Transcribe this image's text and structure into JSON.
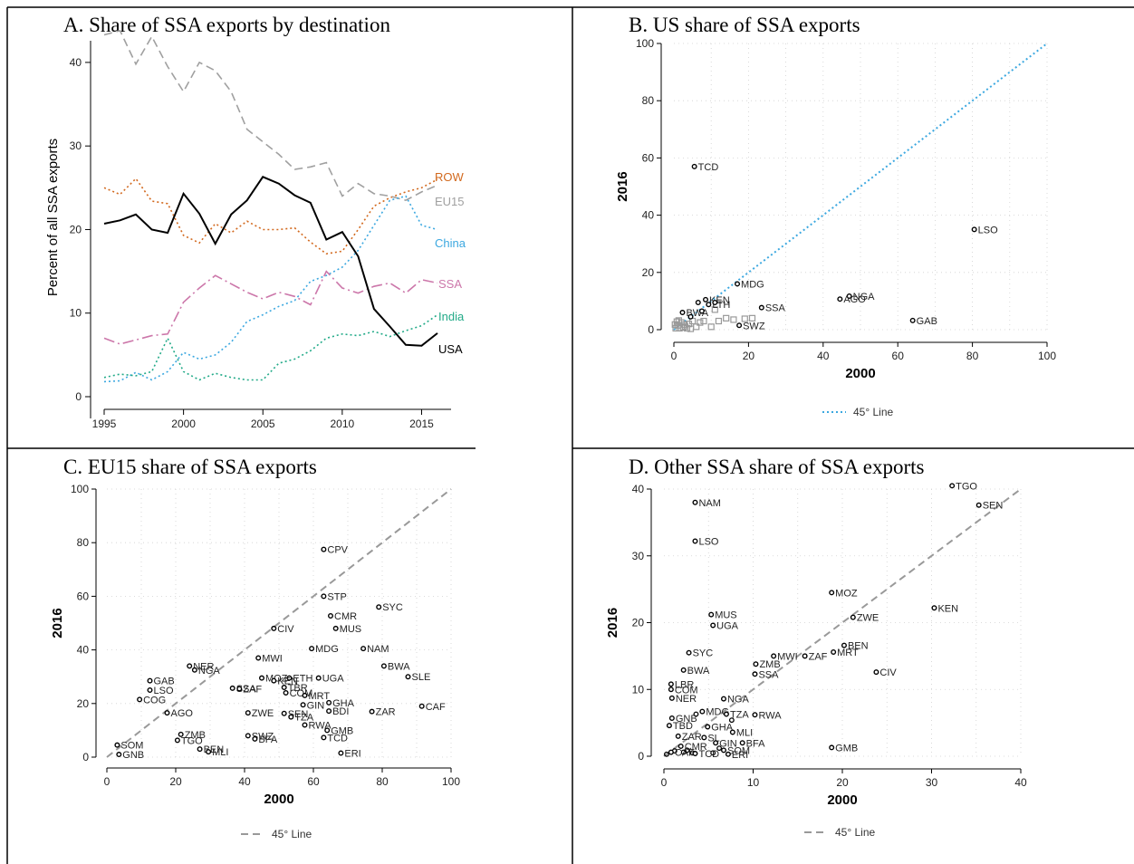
{
  "chart_data": [
    {
      "type": "line",
      "title": "A.   Share of SSA exports by destination",
      "ylabel": "Percent of all SSA  exports",
      "xlabel": "",
      "xlim": [
        1995,
        2016
      ],
      "ylim": [
        0,
        44
      ],
      "xticks": [
        1995,
        2000,
        2005,
        2010,
        2015
      ],
      "yticks": [
        0,
        10,
        20,
        30,
        40
      ],
      "grid": false,
      "x": [
        1995,
        1996,
        1997,
        1998,
        1999,
        2000,
        2001,
        2002,
        2003,
        2004,
        2005,
        2006,
        2007,
        2008,
        2009,
        2010,
        2011,
        2012,
        2013,
        2014,
        2015,
        2016
      ],
      "series": [
        {
          "name": "ROW",
          "color": "#d2691e",
          "dash": "dot",
          "values": [
            25,
            24.2,
            26.1,
            23.4,
            23.1,
            19.3,
            18.4,
            20.7,
            19.6,
            21,
            20,
            20,
            20.2,
            18.5,
            17.1,
            17.4,
            20,
            22.8,
            23.8,
            24.5,
            25,
            26
          ]
        },
        {
          "name": "EU15",
          "color": "#a0a0a0",
          "dash": "dash",
          "values": [
            43.3,
            43.8,
            39.8,
            43.1,
            39.5,
            36.5,
            40,
            39,
            36.5,
            32,
            30.5,
            29,
            27.2,
            27.5,
            28,
            24,
            25.5,
            24.3,
            24,
            23.5,
            24.5,
            25.3
          ]
        },
        {
          "name": "China",
          "color": "#3ca8e0",
          "dash": "dot",
          "values": [
            1.8,
            1.9,
            2.9,
            2,
            3,
            5.3,
            4.5,
            5,
            6.5,
            9,
            9.8,
            10.8,
            11.5,
            13.8,
            14.5,
            15.5,
            17.5,
            20.5,
            23.5,
            24,
            20.5,
            20
          ]
        },
        {
          "name": "SSA",
          "color": "#cc77aa",
          "dash": "dashdot",
          "values": [
            7,
            6.3,
            6.8,
            7.3,
            7.5,
            11.3,
            13,
            14.5,
            13.5,
            12.5,
            11.7,
            12.5,
            12,
            11,
            15,
            13,
            12.4,
            13.2,
            13.6,
            12.4,
            14,
            13.6
          ]
        },
        {
          "name": "India",
          "color": "#22aa88",
          "dash": "dot",
          "values": [
            2.3,
            2.7,
            2.5,
            3,
            7,
            3,
            2,
            2.8,
            2.3,
            2,
            2,
            4,
            4.5,
            5.5,
            7,
            7.5,
            7.3,
            7.8,
            7.2,
            7.9,
            8.5,
            9.8
          ]
        },
        {
          "name": "USA",
          "color": "#000000",
          "dash": "solid",
          "values": [
            20.7,
            21.1,
            21.8,
            20,
            19.6,
            24.3,
            21.9,
            18.3,
            21.8,
            23.5,
            26.3,
            25.5,
            24.1,
            23.2,
            18.8,
            19.7,
            16.8,
            10.5,
            8.4,
            6.2,
            6.1,
            7.6
          ]
        }
      ]
    },
    {
      "type": "scatter",
      "title": "B.   US share of SSA exports",
      "xlabel": "2000",
      "ylabel": "2016",
      "xlim": [
        0,
        100
      ],
      "ylim": [
        0,
        100
      ],
      "xticks": [
        0,
        20,
        40,
        60,
        80,
        100
      ],
      "yticks": [
        0,
        20,
        40,
        60,
        80,
        100
      ],
      "grid": true,
      "legend": "45° Line",
      "points": [
        {
          "label": "TCD",
          "x": 5.5,
          "y": 57
        },
        {
          "label": "LSO",
          "x": 80.5,
          "y": 35
        },
        {
          "label": "NGA",
          "x": 47,
          "y": 11.7
        },
        {
          "label": "AGO",
          "x": 44.5,
          "y": 10.7
        },
        {
          "label": "GAB",
          "x": 64,
          "y": 3.2
        },
        {
          "label": "SSA",
          "x": 23.5,
          "y": 7.7
        },
        {
          "label": "SWZ",
          "x": 17.5,
          "y": 1.5
        },
        {
          "label": "MDG",
          "x": 17,
          "y": 16
        },
        {
          "label": "KEN",
          "x": 8.5,
          "y": 10.5
        },
        {
          "label": "LTH",
          "x": 9.3,
          "y": 8.8
        },
        {
          "label": "BWA",
          "x": 2.3,
          "y": 6
        },
        {
          "label": "",
          "x": 6.5,
          "y": 9.5
        },
        {
          "label": "",
          "x": 4.5,
          "y": 4.5
        },
        {
          "label": "",
          "x": 7.5,
          "y": 6.5
        },
        {
          "label": "",
          "x": 11,
          "y": 9.5
        }
      ],
      "unlabeled_points": [
        [
          0.5,
          0.5
        ],
        [
          1,
          1.5
        ],
        [
          1.5,
          0.5
        ],
        [
          2,
          2.5
        ],
        [
          2.5,
          0.8
        ],
        [
          3,
          1.2
        ],
        [
          3.5,
          0.5
        ],
        [
          0.8,
          2.8
        ],
        [
          1.3,
          3.2
        ],
        [
          2.8,
          1.8
        ],
        [
          4,
          2
        ],
        [
          5,
          3
        ],
        [
          6,
          1
        ],
        [
          7,
          2.5
        ],
        [
          8,
          3
        ],
        [
          10,
          1
        ],
        [
          12,
          3
        ],
        [
          14,
          4
        ],
        [
          16,
          3.5
        ],
        [
          19,
          3.8
        ],
        [
          21,
          4
        ],
        [
          11,
          7
        ],
        [
          4.5,
          0.3
        ],
        [
          0.3,
          1.8
        ]
      ]
    },
    {
      "type": "scatter",
      "title": "C.   EU15 share of SSA exports",
      "xlabel": "2000",
      "ylabel": "2016",
      "xlim": [
        0,
        100
      ],
      "ylim": [
        0,
        100
      ],
      "xticks": [
        0,
        20,
        40,
        60,
        80,
        100
      ],
      "yticks": [
        0,
        20,
        40,
        60,
        80,
        100
      ],
      "grid": true,
      "legend": "45° Line",
      "points": [
        {
          "label": "CPV",
          "x": 63,
          "y": 77.5
        },
        {
          "label": "STP",
          "x": 63,
          "y": 60
        },
        {
          "label": "SYC",
          "x": 79,
          "y": 56
        },
        {
          "label": "CMR",
          "x": 65,
          "y": 52.7
        },
        {
          "label": "MUS",
          "x": 66.5,
          "y": 48
        },
        {
          "label": "CIV",
          "x": 48.5,
          "y": 48
        },
        {
          "label": "MDG",
          "x": 59.5,
          "y": 40.5
        },
        {
          "label": "NAM",
          "x": 74.5,
          "y": 40.5
        },
        {
          "label": "MWI",
          "x": 44,
          "y": 37
        },
        {
          "label": "BWA",
          "x": 80.5,
          "y": 34
        },
        {
          "label": "SLE",
          "x": 87.5,
          "y": 30
        },
        {
          "label": "NER",
          "x": 24,
          "y": 34
        },
        {
          "label": "NGA",
          "x": 25.5,
          "y": 32.5
        },
        {
          "label": "GAB",
          "x": 12.5,
          "y": 28.5
        },
        {
          "label": "LSO",
          "x": 12.5,
          "y": 25
        },
        {
          "label": "COG",
          "x": 9.5,
          "y": 21.5
        },
        {
          "label": "SSA",
          "x": 36.5,
          "y": 25.7
        },
        {
          "label": "ZAF",
          "x": 38.5,
          "y": 25.5
        },
        {
          "label": "MOZ",
          "x": 45,
          "y": 29.5
        },
        {
          "label": "ETH",
          "x": 53,
          "y": 29.5
        },
        {
          "label": "KEN",
          "x": 48.5,
          "y": 28.5
        },
        {
          "label": "UGA",
          "x": 61.5,
          "y": 29.5
        },
        {
          "label": "TBR",
          "x": 51.5,
          "y": 26
        },
        {
          "label": "COM",
          "x": 52,
          "y": 24
        },
        {
          "label": "MRT",
          "x": 57.5,
          "y": 23
        },
        {
          "label": "GIN",
          "x": 57,
          "y": 19.5
        },
        {
          "label": "GHA",
          "x": 64.5,
          "y": 20.3
        },
        {
          "label": "BDI",
          "x": 64.5,
          "y": 17.2
        },
        {
          "label": "ZAR",
          "x": 77,
          "y": 17
        },
        {
          "label": "CAF",
          "x": 91.5,
          "y": 19
        },
        {
          "label": "AGO",
          "x": 17.5,
          "y": 16.5
        },
        {
          "label": "ZWE",
          "x": 41,
          "y": 16.5
        },
        {
          "label": "SEN",
          "x": 51.5,
          "y": 16.3
        },
        {
          "label": "TZA",
          "x": 53.5,
          "y": 15
        },
        {
          "label": "RWA",
          "x": 57.5,
          "y": 12
        },
        {
          "label": "GMB",
          "x": 64,
          "y": 10
        },
        {
          "label": "TCD",
          "x": 63,
          "y": 7.3
        },
        {
          "label": "ERI",
          "x": 68,
          "y": 1.5
        },
        {
          "label": "ZMB",
          "x": 21.5,
          "y": 8.5
        },
        {
          "label": "TGO",
          "x": 20.5,
          "y": 6.3
        },
        {
          "label": "SWZ",
          "x": 41,
          "y": 8
        },
        {
          "label": "BFA",
          "x": 43,
          "y": 6.8
        },
        {
          "label": "BEN",
          "x": 27,
          "y": 3
        },
        {
          "label": "MLI",
          "x": 29.5,
          "y": 2
        },
        {
          "label": "SOM",
          "x": 3,
          "y": 4.5
        },
        {
          "label": "GNB",
          "x": 3.5,
          "y": 1
        }
      ],
      "unlabeled_points": []
    },
    {
      "type": "scatter",
      "title": "D.   Other SSA share of SSA exports",
      "xlabel": "2000",
      "ylabel": "2016",
      "xlim": [
        0,
        40
      ],
      "ylim": [
        0,
        40
      ],
      "xticks": [
        0,
        10,
        20,
        30,
        40
      ],
      "yticks": [
        0,
        10,
        20,
        30,
        40
      ],
      "grid": true,
      "legend": "45° Line",
      "points": [
        {
          "label": "TGO",
          "x": 32.3,
          "y": 40.5
        },
        {
          "label": "SEN",
          "x": 35.3,
          "y": 37.6
        },
        {
          "label": "NAM",
          "x": 3.5,
          "y": 38
        },
        {
          "label": "LSO",
          "x": 3.5,
          "y": 32.2
        },
        {
          "label": "MOZ",
          "x": 18.8,
          "y": 24.5
        },
        {
          "label": "KEN",
          "x": 30.3,
          "y": 22.2
        },
        {
          "label": "ZWE",
          "x": 21.2,
          "y": 20.8
        },
        {
          "label": "MUS",
          "x": 5.3,
          "y": 21.2
        },
        {
          "label": "UGA",
          "x": 5.5,
          "y": 19.6
        },
        {
          "label": "BEN",
          "x": 20.2,
          "y": 16.6
        },
        {
          "label": "MRT",
          "x": 19,
          "y": 15.6
        },
        {
          "label": "ZAF",
          "x": 15.8,
          "y": 15
        },
        {
          "label": "MWI",
          "x": 12.3,
          "y": 15
        },
        {
          "label": "SYC",
          "x": 2.8,
          "y": 15.5
        },
        {
          "label": "ZMB",
          "x": 10.3,
          "y": 13.8
        },
        {
          "label": "SSA",
          "x": 10.2,
          "y": 12.3
        },
        {
          "label": "CIV",
          "x": 23.8,
          "y": 12.6
        },
        {
          "label": "BWA",
          "x": 2.2,
          "y": 12.9
        },
        {
          "label": "LBR",
          "x": 0.8,
          "y": 10.8
        },
        {
          "label": "COM",
          "x": 0.8,
          "y": 10
        },
        {
          "label": "NER",
          "x": 0.9,
          "y": 8.7
        },
        {
          "label": "NGA",
          "x": 6.7,
          "y": 8.6
        },
        {
          "label": "GNB",
          "x": 0.9,
          "y": 5.7
        },
        {
          "label": "RWA",
          "x": 10.2,
          "y": 6.2
        },
        {
          "label": "MDG",
          "x": 4.3,
          "y": 6.7
        },
        {
          "label": "TZA",
          "x": 7,
          "y": 6.3
        },
        {
          "label": "TBD",
          "x": 0.6,
          "y": 4.6
        },
        {
          "label": "GHA",
          "x": 4.9,
          "y": 4.4
        },
        {
          "label": "MLI",
          "x": 7.7,
          "y": 3.6
        },
        {
          "label": "ZAR",
          "x": 1.6,
          "y": 3
        },
        {
          "label": "SL",
          "x": 4.5,
          "y": 2.8
        },
        {
          "label": "GIN",
          "x": 5.8,
          "y": 2
        },
        {
          "label": "BFA",
          "x": 8.8,
          "y": 2
        },
        {
          "label": "CMR",
          "x": 1.9,
          "y": 1.5
        },
        {
          "label": "SOM",
          "x": 6.7,
          "y": 0.9
        },
        {
          "label": "CAF",
          "x": 0.8,
          "y": 0.6
        },
        {
          "label": "TCD",
          "x": 3.5,
          "y": 0.4
        },
        {
          "label": "ERI",
          "x": 7.2,
          "y": 0.3
        },
        {
          "label": "GMB",
          "x": 18.8,
          "y": 1.3
        }
      ],
      "unlabeled_points": [
        [
          0.3,
          0.3
        ],
        [
          1.2,
          0.8
        ],
        [
          2.2,
          0.6
        ],
        [
          2.6,
          0.9
        ],
        [
          3.2,
          0.5
        ],
        [
          5.5,
          0.5
        ],
        [
          6.2,
          1.2
        ],
        [
          3.6,
          6.3
        ],
        [
          7.6,
          5.4
        ]
      ]
    }
  ]
}
